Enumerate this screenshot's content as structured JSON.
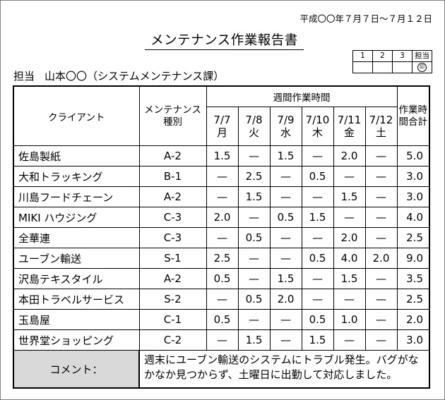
{
  "header": {
    "date_range": "平成〇〇年７月７日〜７月１２日",
    "title": "メンテナンス作業報告書",
    "tanto_label": "担当",
    "tanto_person": "山本〇〇（システムメンテナンス課）"
  },
  "stamps": {
    "headers": [
      "1",
      "2",
      "3",
      "担当"
    ],
    "seal": "印"
  },
  "table": {
    "col_client": "クライアント",
    "col_type_line1": "メンテナンス",
    "col_type_line2": "種別",
    "col_week": "週間作業時間",
    "col_total_line1": "作業時",
    "col_total_line2": "間合計",
    "days": [
      {
        "date": "7/7",
        "dow": "月"
      },
      {
        "date": "7/8",
        "dow": "火"
      },
      {
        "date": "7/9",
        "dow": "水"
      },
      {
        "date": "7/10",
        "dow": "木"
      },
      {
        "date": "7/11",
        "dow": "金"
      },
      {
        "date": "7/12",
        "dow": "土"
      }
    ],
    "rows": [
      {
        "client": "佐島製紙",
        "type": "A-2",
        "hours": [
          "1.5",
          "—",
          "1.5",
          "—",
          "2.0",
          "—"
        ],
        "total": "5.0"
      },
      {
        "client": "大和トラッキング",
        "type": "B-1",
        "hours": [
          "—",
          "2.5",
          "—",
          "0.5",
          "—",
          "—"
        ],
        "total": "3.0"
      },
      {
        "client": "川島フードチェーン",
        "type": "A-2",
        "hours": [
          "—",
          "1.5",
          "—",
          "—",
          "1.5",
          "—"
        ],
        "total": "3.0"
      },
      {
        "client": "MIKI ハウジング",
        "type": "C-3",
        "hours": [
          "2.0",
          "—",
          "0.5",
          "1.5",
          "—",
          "—"
        ],
        "total": "4.0"
      },
      {
        "client": "全華連",
        "type": "C-3",
        "hours": [
          "—",
          "0.5",
          "—",
          "—",
          "2.0",
          "—"
        ],
        "total": "2.5"
      },
      {
        "client": "ユーブン輸送",
        "type": "S-1",
        "hours": [
          "2.5",
          "—",
          "—",
          "0.5",
          "4.0",
          "2.0"
        ],
        "total": "9.0"
      },
      {
        "client": "沢島テキスタイル",
        "type": "A-2",
        "hours": [
          "0.5",
          "—",
          "1.5",
          "—",
          "1.5",
          "—"
        ],
        "total": "3.5"
      },
      {
        "client": "本田トラベルサービス",
        "type": "S-2",
        "hours": [
          "—",
          "0.5",
          "2.0",
          "—",
          "—",
          "—"
        ],
        "total": "2.5"
      },
      {
        "client": "玉島屋",
        "type": "C-1",
        "hours": [
          "0.5",
          "—",
          "—",
          "0.5",
          "1.0",
          "—"
        ],
        "total": "2.0"
      },
      {
        "client": "世界堂ショッピング",
        "type": "C-2",
        "hours": [
          "—",
          "1.5",
          "—",
          "1.5",
          "—",
          "—"
        ],
        "total": "3.0"
      }
    ]
  },
  "comment": {
    "label": "コメント：",
    "text": "週末にユーブン輸送のシステムにトラブル発生。バグがなかなか見つからず、土曜日に出勤して対応しました。"
  }
}
